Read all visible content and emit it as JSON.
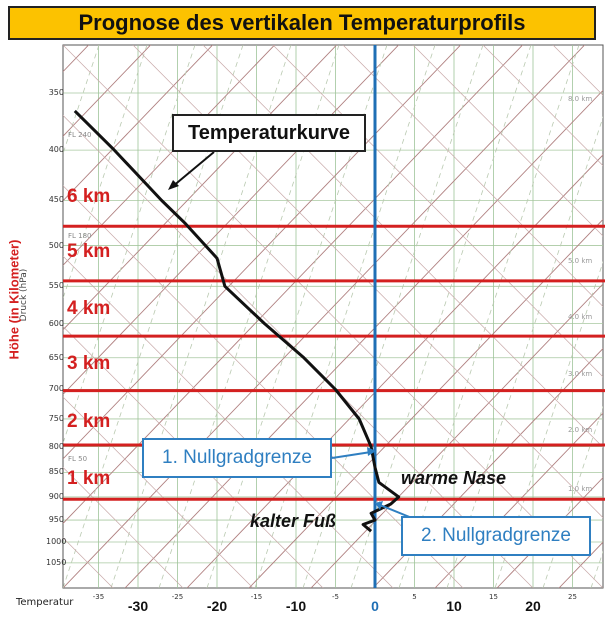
{
  "title": "Prognose des vertikalen Temperaturprofils",
  "axes": {
    "x_label": "Temperatur",
    "y_label_pressure": "Druck (hPa)",
    "y_label_height": "Höhe (in Kilometer)",
    "pressure_ticks": [
      "350",
      "400",
      "450",
      "500",
      "550",
      "600",
      "650",
      "700",
      "750",
      "800",
      "850",
      "900",
      "950",
      "1000",
      "1050"
    ],
    "temp_ticks_small": [
      "-35",
      "-25",
      "-15",
      "-5",
      "5",
      "15",
      "25"
    ],
    "temp_ticks_big": [
      "-30",
      "-20",
      "-10",
      "0",
      "10",
      "20"
    ]
  },
  "height_lines": [
    "6 km",
    "5 km",
    "4 km",
    "3 km",
    "2 km",
    "1 km"
  ],
  "flight_levels": [
    "FL 240",
    "FL 180",
    "FL 50"
  ],
  "altitude_marks": [
    "8.0 km",
    "5.0 km",
    "4.0 km",
    "3.0 km",
    "2.0 km",
    "1.0 km"
  ],
  "callouts": {
    "temperature_curve": "Temperaturkurve",
    "null_1": "1. Nullgradgrenze",
    "null_2": "2. Nullgradgrenze",
    "warm_nose": "warme Nase",
    "cold_foot": "kalter Fuß"
  },
  "colors": {
    "title_bg": "#fcc200",
    "height_line": "#d42020",
    "zero_line": "#1f6fb5",
    "callout_blue": "#2f7fc1",
    "isotherm": "#9fc49a",
    "dry_adiabat": "#b08080",
    "moist_adiabat": "#b9c9b0"
  },
  "chart_data": {
    "type": "line",
    "title": "Prognose des vertikalen Temperaturprofils",
    "xlabel": "Temperatur",
    "ylabel": "Druck (hPa)",
    "xlim": [
      -37,
      28
    ],
    "ylim": [
      1070,
      330
    ],
    "y_scale": "log",
    "grid": true,
    "series": [
      {
        "points": [
          {
            "t": -38,
            "p": 365
          },
          {
            "t": -33,
            "p": 400
          },
          {
            "t": -27,
            "p": 450
          },
          {
            "t": -24,
            "p": 475
          },
          {
            "t": -20,
            "p": 515
          },
          {
            "t": -19,
            "p": 550
          },
          {
            "t": -14,
            "p": 600
          },
          {
            "t": -9,
            "p": 650
          },
          {
            "t": -5,
            "p": 700
          },
          {
            "t": -2,
            "p": 750
          },
          {
            "t": -0.5,
            "p": 800
          },
          {
            "t": 0,
            "p": 840
          },
          {
            "t": 0.5,
            "p": 870
          },
          {
            "t": 3,
            "p": 900
          },
          {
            "t": 2,
            "p": 915
          },
          {
            "t": -0.5,
            "p": 935
          },
          {
            "t": 0,
            "p": 950
          },
          {
            "t": -1.5,
            "p": 960
          },
          {
            "t": -0.5,
            "p": 975
          }
        ]
      }
    ],
    "height_levels_hpa": [
      {
        "label": "6 km",
        "p": 478
      },
      {
        "label": "5 km",
        "p": 543
      },
      {
        "label": "4 km",
        "p": 618
      },
      {
        "label": "3 km",
        "p": 702
      },
      {
        "label": "2 km",
        "p": 797
      },
      {
        "label": "1 km",
        "p": 905
      }
    ],
    "zero_line_t": 0
  }
}
